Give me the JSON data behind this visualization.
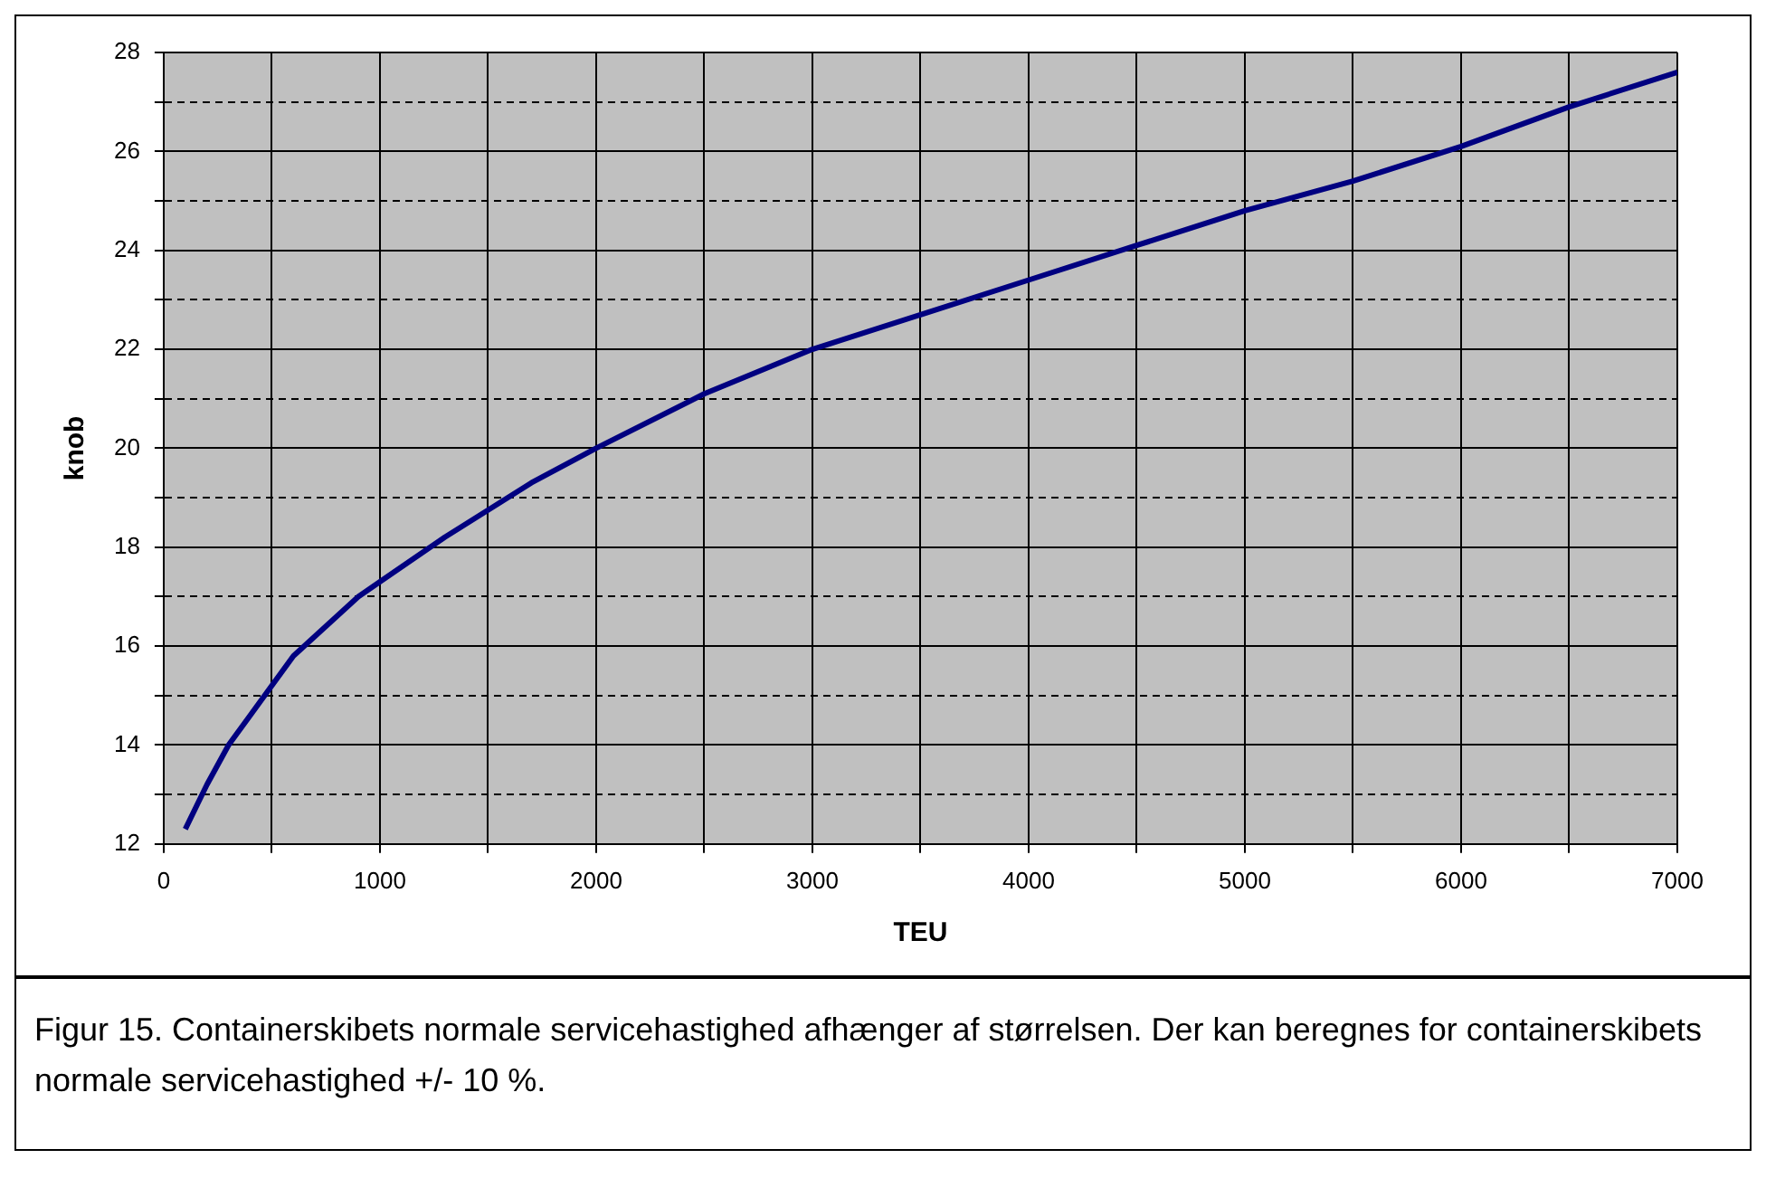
{
  "chart_data": {
    "type": "line",
    "xlabel": "TEU",
    "ylabel": "knob",
    "x": [
      100,
      200,
      300,
      400,
      600,
      900,
      1000,
      1300,
      1700,
      2000,
      2500,
      3000,
      3500,
      4000,
      4500,
      5000,
      5500,
      6000,
      6500,
      7000
    ],
    "series": [
      {
        "color": "#000080",
        "values": [
          12.3,
          13.2,
          14.0,
          14.6,
          15.8,
          17.0,
          17.3,
          18.2,
          19.3,
          20.0,
          21.1,
          22.0,
          22.7,
          23.4,
          24.1,
          24.8,
          25.4,
          26.1,
          26.9,
          27.6
        ]
      }
    ],
    "xlim": [
      0,
      7000
    ],
    "xticks": [
      0,
      {
        "value": 500,
        "label": null
      },
      1000,
      {
        "value": 1500,
        "label": null
      },
      2000,
      {
        "value": 2500,
        "label": null
      },
      3000,
      {
        "value": 3500,
        "label": null
      },
      4000,
      {
        "value": 4500,
        "label": null
      },
      5000,
      {
        "value": 5500,
        "label": null
      },
      6000,
      {
        "value": 6500,
        "label": null
      },
      7000
    ],
    "ylim": [
      12,
      28
    ],
    "yticks": [
      12,
      {
        "value": 13,
        "label": null
      },
      14,
      {
        "value": 15,
        "label": null
      },
      16,
      {
        "value": 17,
        "label": null
      },
      18,
      {
        "value": 19,
        "label": null
      },
      20,
      {
        "value": 21,
        "label": null
      },
      22,
      {
        "value": 23,
        "label": null
      },
      24,
      {
        "value": 25,
        "label": null
      },
      26,
      {
        "value": 27,
        "label": null
      },
      28
    ],
    "grid": true,
    "legend": false,
    "marker": "none",
    "line_style": "solid",
    "annotations": [
      "Figur 15. Containerskibets normale servicehastighed afhænger af størrelsen. Der kan beregnes for containerskibets normale servicehastighed +/- 10 %."
    ]
  }
}
